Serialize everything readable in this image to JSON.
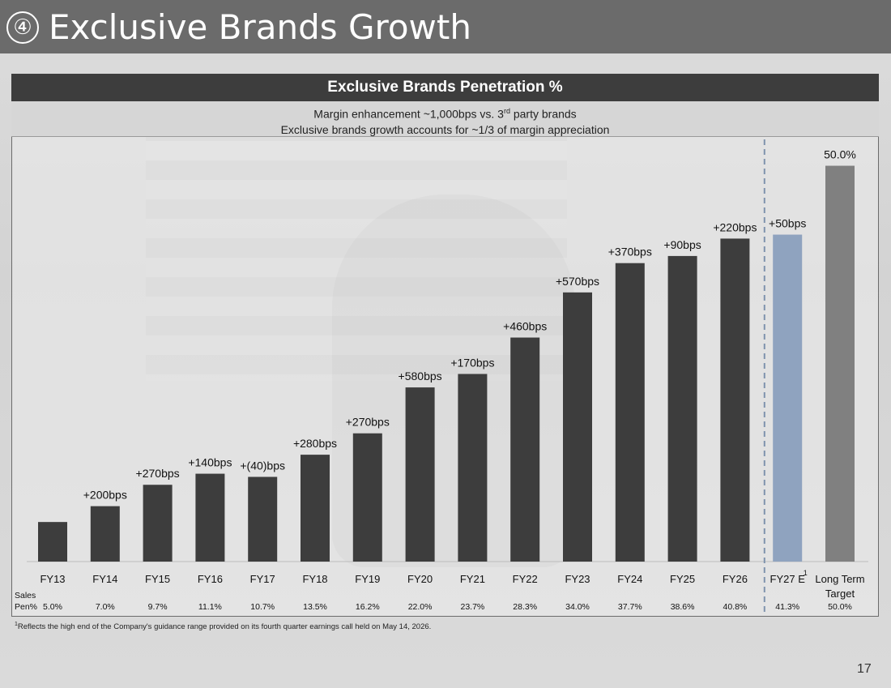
{
  "header": {
    "number": "④",
    "title": "Exclusive Brands Growth"
  },
  "panel": {
    "title": "Exclusive Brands Penetration %",
    "subtitle_line1_pre": "Margin enhancement ~1,000bps vs. 3",
    "subtitle_line1_sup": "rd",
    "subtitle_line1_post": " party brands",
    "subtitle_line2": "Exclusive brands growth accounts for ~1/3 of margin appreciation"
  },
  "chart_data": {
    "type": "bar",
    "title": "Exclusive Brands Penetration %",
    "categories": [
      "FY13",
      "FY14",
      "FY15",
      "FY16",
      "FY17",
      "FY18",
      "FY19",
      "FY20",
      "FY21",
      "FY22",
      "FY23",
      "FY24",
      "FY25",
      "FY26",
      "FY27 E",
      "Long Term Target"
    ],
    "values": [
      5.0,
      7.0,
      9.7,
      11.1,
      10.7,
      13.5,
      16.2,
      22.0,
      23.7,
      28.3,
      34.0,
      37.7,
      38.6,
      40.8,
      41.3,
      50.0
    ],
    "bar_labels": [
      "",
      "+200bps",
      "+270bps",
      "+140bps",
      "+(40)bps",
      "+280bps",
      "+270bps",
      "+580bps",
      "+170bps",
      "+460bps",
      "+570bps",
      "+370bps",
      "+90bps",
      "+220bps",
      "+50bps",
      "50.0%"
    ],
    "sales_pen_labels": [
      "5.0%",
      "7.0%",
      "9.7%",
      "11.1%",
      "10.7%",
      "13.5%",
      "16.2%",
      "22.0%",
      "23.7%",
      "28.3%",
      "34.0%",
      "37.7%",
      "38.6%",
      "40.8%",
      "41.3%",
      "50.0%"
    ],
    "row_label": [
      "Sales",
      "Pen%"
    ],
    "ylim": [
      0,
      52
    ],
    "bar_colors": {
      "historical": "#3d3d3d",
      "estimate": "#8fa3bf",
      "target": "#808080"
    },
    "footnote_marker_category": "FY27 E",
    "footnote_marker": "1",
    "divider_after_category": "FY26",
    "grid": false,
    "xlabel": "",
    "ylabel": ""
  },
  "footnote": {
    "marker": "1",
    "text": "Reflects the high end of the Company's guidance range provided on its fourth quarter earnings call held on May 14, 2026."
  },
  "page_number": "17"
}
